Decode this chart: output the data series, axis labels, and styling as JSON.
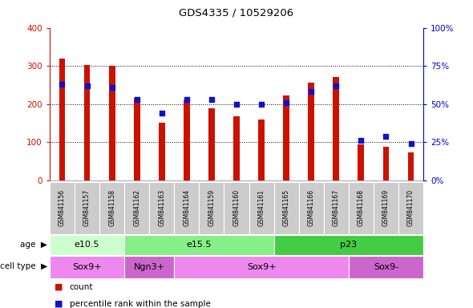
{
  "title": "GDS4335 / 10529206",
  "samples": [
    "GSM841156",
    "GSM841157",
    "GSM841158",
    "GSM841162",
    "GSM841163",
    "GSM841164",
    "GSM841159",
    "GSM841160",
    "GSM841161",
    "GSM841165",
    "GSM841166",
    "GSM841167",
    "GSM841168",
    "GSM841169",
    "GSM841170"
  ],
  "counts": [
    320,
    303,
    300,
    215,
    150,
    210,
    188,
    168,
    160,
    222,
    255,
    270,
    93,
    88,
    73
  ],
  "percentile_ranks": [
    63,
    62,
    61,
    53,
    44,
    53,
    53,
    50,
    50,
    51,
    58,
    62,
    26,
    29,
    24
  ],
  "ylim_left": [
    0,
    400
  ],
  "ylim_right": [
    0,
    100
  ],
  "yticks_left": [
    0,
    100,
    200,
    300,
    400
  ],
  "yticks_right": [
    0,
    25,
    50,
    75,
    100
  ],
  "ytick_labels_right": [
    "0%",
    "25%",
    "50%",
    "75%",
    "100%"
  ],
  "bar_color": "#cc1100",
  "dot_color": "#1111cc",
  "background_color": "#ffffff",
  "age_groups": [
    {
      "label": "e10.5",
      "start": 0,
      "end": 3,
      "color": "#ccffcc"
    },
    {
      "label": "e15.5",
      "start": 3,
      "end": 9,
      "color": "#88ee88"
    },
    {
      "label": "p23",
      "start": 9,
      "end": 15,
      "color": "#44cc44"
    }
  ],
  "cell_type_groups": [
    {
      "label": "Sox9+",
      "start": 0,
      "end": 3,
      "color": "#ee88ee"
    },
    {
      "label": "Ngn3+",
      "start": 3,
      "end": 5,
      "color": "#cc66cc"
    },
    {
      "label": "Sox9+",
      "start": 5,
      "end": 12,
      "color": "#ee88ee"
    },
    {
      "label": "Sox9-",
      "start": 12,
      "end": 15,
      "color": "#cc66cc"
    }
  ],
  "left_axis_color": "#cc1100",
  "right_axis_color": "#0000cc",
  "bar_width": 0.25,
  "dot_size": 18,
  "dot_marker": "s"
}
